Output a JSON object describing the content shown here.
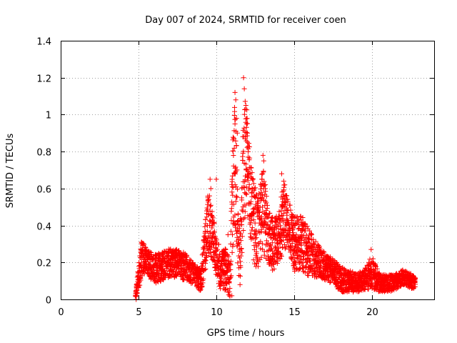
{
  "chart_data": {
    "type": "scatter",
    "title": "Day 007 of 2024, SRMTID for receiver coen",
    "xlabel": "GPS time / hours",
    "ylabel": "SRMTID / TECUs",
    "xlim": [
      0,
      24
    ],
    "ylim": [
      0,
      1.4
    ],
    "xticks": [
      0,
      5,
      10,
      15,
      20
    ],
    "yticks": [
      0,
      0.2,
      0.4,
      0.6,
      0.8,
      1,
      1.2,
      1.4
    ],
    "ytick_labels": [
      "0",
      "0.2",
      "0.4",
      "0.6",
      "0.8",
      "1",
      "1.2",
      "1.4"
    ],
    "grid": true,
    "marker": "+",
    "color": "#ff0000",
    "envelope_description": "Scattered points; bands of typical values (hours, low, high)",
    "envelope": [
      [
        4.8,
        0.0,
        0.02
      ],
      [
        5.0,
        0.05,
        0.2
      ],
      [
        5.2,
        0.12,
        0.32
      ],
      [
        5.5,
        0.15,
        0.28
      ],
      [
        6.0,
        0.08,
        0.24
      ],
      [
        6.5,
        0.1,
        0.26
      ],
      [
        7.0,
        0.12,
        0.28
      ],
      [
        7.5,
        0.12,
        0.27
      ],
      [
        8.0,
        0.1,
        0.25
      ],
      [
        8.5,
        0.08,
        0.2
      ],
      [
        9.0,
        0.04,
        0.16
      ],
      [
        9.3,
        0.15,
        0.45
      ],
      [
        9.5,
        0.25,
        0.6
      ],
      [
        9.8,
        0.2,
        0.45
      ],
      [
        10.0,
        0.1,
        0.35
      ],
      [
        10.3,
        0.05,
        0.25
      ],
      [
        10.6,
        0.05,
        0.3
      ],
      [
        10.9,
        0.0,
        0.2
      ],
      [
        11.0,
        0.2,
        0.8
      ],
      [
        11.2,
        0.4,
        1.1
      ],
      [
        11.5,
        0.05,
        0.35
      ],
      [
        11.7,
        0.3,
        0.9
      ],
      [
        11.9,
        0.5,
        1.15
      ],
      [
        12.1,
        0.4,
        0.85
      ],
      [
        12.4,
        0.2,
        0.65
      ],
      [
        12.7,
        0.15,
        0.55
      ],
      [
        13.0,
        0.25,
        0.75
      ],
      [
        13.3,
        0.2,
        0.5
      ],
      [
        13.6,
        0.15,
        0.45
      ],
      [
        14.0,
        0.2,
        0.45
      ],
      [
        14.3,
        0.25,
        0.65
      ],
      [
        14.6,
        0.3,
        0.55
      ],
      [
        15.0,
        0.15,
        0.45
      ],
      [
        15.5,
        0.15,
        0.45
      ],
      [
        16.0,
        0.12,
        0.38
      ],
      [
        16.5,
        0.12,
        0.3
      ],
      [
        17.0,
        0.1,
        0.25
      ],
      [
        17.5,
        0.08,
        0.22
      ],
      [
        18.0,
        0.04,
        0.18
      ],
      [
        18.5,
        0.04,
        0.16
      ],
      [
        19.0,
        0.04,
        0.14
      ],
      [
        19.5,
        0.05,
        0.16
      ],
      [
        20.0,
        0.06,
        0.24
      ],
      [
        20.5,
        0.04,
        0.14
      ],
      [
        21.0,
        0.04,
        0.13
      ],
      [
        21.5,
        0.05,
        0.14
      ],
      [
        22.0,
        0.08,
        0.16
      ],
      [
        22.5,
        0.06,
        0.14
      ],
      [
        22.8,
        0.06,
        0.12
      ]
    ],
    "peaks": [
      [
        11.75,
        1.2
      ],
      [
        11.8,
        1.14
      ],
      [
        11.2,
        1.12
      ],
      [
        11.25,
        1.08
      ],
      [
        11.9,
        1.05
      ],
      [
        11.3,
        0.98
      ],
      [
        11.95,
        0.95
      ],
      [
        12.0,
        0.9
      ],
      [
        11.35,
        0.9
      ],
      [
        13.0,
        0.78
      ],
      [
        13.05,
        0.75
      ],
      [
        14.2,
        0.68
      ],
      [
        10.0,
        0.65
      ],
      [
        9.6,
        0.65
      ],
      [
        9.65,
        0.6
      ],
      [
        14.4,
        0.62
      ],
      [
        12.3,
        0.6
      ],
      [
        10.75,
        0.35
      ],
      [
        11.0,
        0.02
      ],
      [
        4.85,
        0.0
      ],
      [
        19.95,
        0.27
      ]
    ]
  }
}
